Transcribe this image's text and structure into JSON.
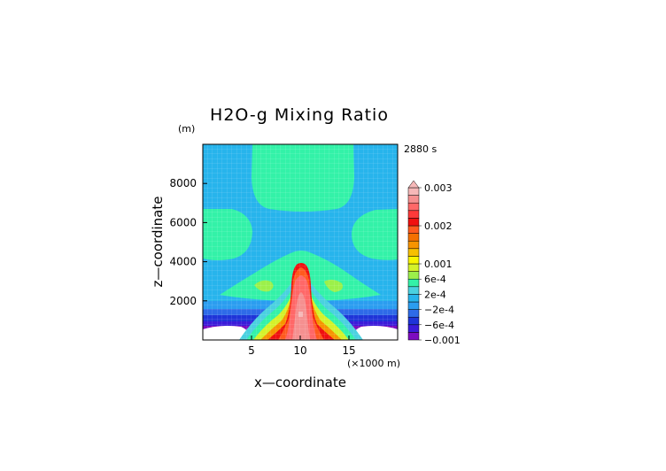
{
  "chart_data": {
    "type": "heatmap",
    "title": "H2O-g Mixing Ratio",
    "time_label": "2880 s",
    "xlabel": "x—coordinate",
    "x_unit": "(×1000 m)",
    "ylabel": "z—coordinate",
    "y_unit": "(m)",
    "xlim": [
      0,
      20
    ],
    "ylim": [
      0,
      10000
    ],
    "x_ticks": [
      5,
      10,
      15
    ],
    "x_tick_labels": [
      "5",
      "10",
      "15"
    ],
    "y_ticks": [
      2000,
      4000,
      6000,
      8000
    ],
    "y_tick_labels": [
      "2000",
      "4000",
      "6000",
      "8000"
    ],
    "grid": true,
    "colorbar": {
      "max_label": "0.003",
      "labels": [
        "0.003",
        "0.002",
        "0.001",
        "6e-4",
        "2e-4",
        "−2e-4",
        "−6e-4",
        "−0.001"
      ],
      "levels": [
        -0.001,
        -0.0008,
        -0.0006,
        -0.0004,
        -0.0002,
        0,
        0.0002,
        0.0004,
        0.0006,
        0.0008,
        0.001,
        0.0012,
        0.0014,
        0.0016,
        0.0018,
        0.002,
        0.0022,
        0.0024,
        0.0026,
        0.0028,
        0.003
      ],
      "colors": [
        "#7d0cbf",
        "#3b1bd9",
        "#1f34d8",
        "#2e6be8",
        "#2b9df0",
        "#27b4ec",
        "#4ad1e0",
        "#33f2a8",
        "#9cf04a",
        "#d4f22a",
        "#f9f500",
        "#f7c000",
        "#f79400",
        "#f47000",
        "#ff5a1e",
        "#f01010",
        "#ff3a3a",
        "#ff6868",
        "#f59090",
        "#f6b8b8"
      ]
    }
  }
}
